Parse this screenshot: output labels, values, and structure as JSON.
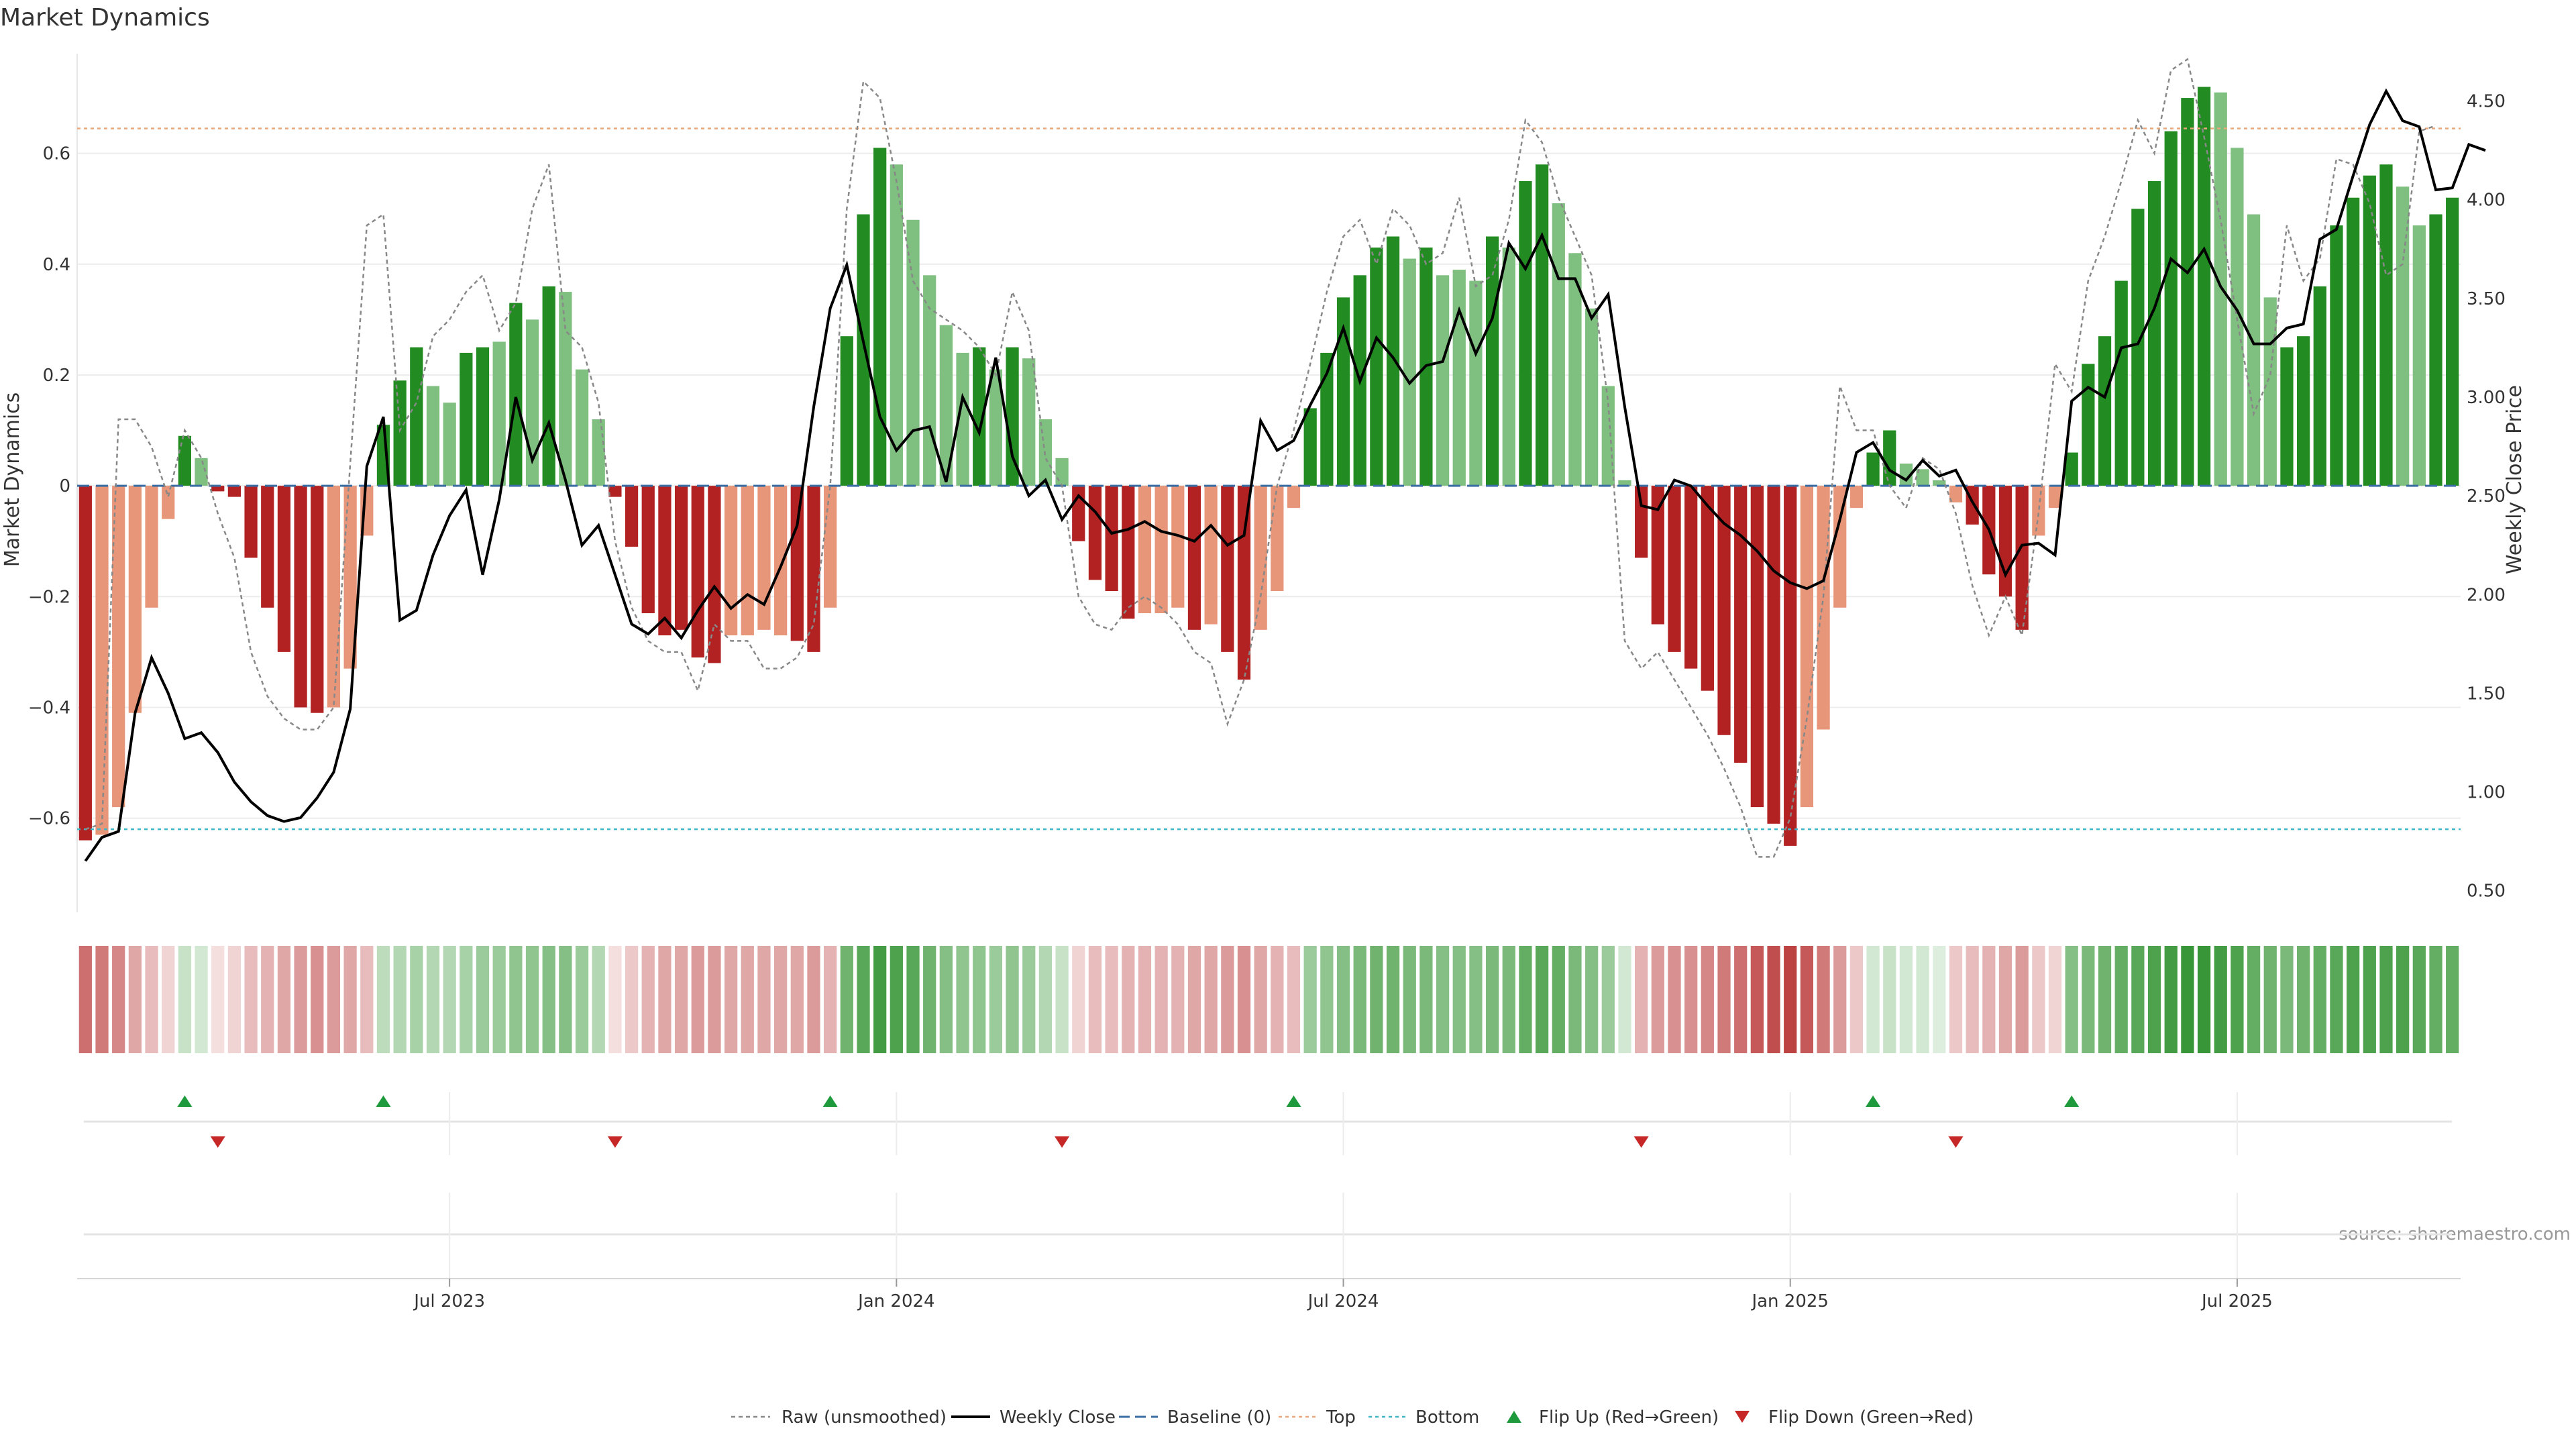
{
  "chart_data": {
    "type": "bar",
    "title": "Market Dynamics",
    "ylabel_left": "Market Dynamics",
    "ylabel_right": "Weekly Close Price",
    "source": "source: sharemaestro.com",
    "x_ticks": [
      "Jul 2023",
      "Jan 2024",
      "Jul 2024",
      "Jan 2025",
      "Jul 2025"
    ],
    "x_tick_index": [
      22,
      49,
      76,
      103,
      130
    ],
    "y_left": {
      "min": -0.77,
      "max": 0.78,
      "ticks": [
        -0.6,
        -0.4,
        -0.2,
        0,
        0.2,
        0.4,
        0.6
      ],
      "tick_labels": [
        "−0.6",
        "−0.4",
        "−0.2",
        "0",
        "0.2",
        "0.4",
        "0.6"
      ]
    },
    "y_right": {
      "min": 0.39,
      "max": 4.74,
      "ticks": [
        0.5,
        1.0,
        1.5,
        2.0,
        2.5,
        3.0,
        3.5,
        4.0,
        4.5
      ],
      "tick_labels": [
        "0.50",
        "1.00",
        "1.50",
        "2.00",
        "2.50",
        "3.00",
        "3.50",
        "4.00",
        "4.50"
      ]
    },
    "top_level": 0.645,
    "bottom_level": -0.62,
    "baseline": 0,
    "values": [
      -0.64,
      -0.63,
      -0.58,
      -0.41,
      -0.22,
      -0.06,
      0.09,
      0.05,
      -0.01,
      -0.02,
      -0.13,
      -0.22,
      -0.3,
      -0.4,
      -0.41,
      -0.4,
      -0.33,
      -0.09,
      0.11,
      0.19,
      0.25,
      0.18,
      0.15,
      0.24,
      0.25,
      0.26,
      0.33,
      0.3,
      0.36,
      0.35,
      0.21,
      0.12,
      -0.02,
      -0.11,
      -0.23,
      -0.27,
      -0.26,
      -0.31,
      -0.32,
      -0.27,
      -0.27,
      -0.26,
      -0.27,
      -0.28,
      -0.3,
      -0.22,
      0.27,
      0.49,
      0.61,
      0.58,
      0.48,
      0.38,
      0.29,
      0.24,
      0.25,
      0.21,
      0.25,
      0.23,
      0.12,
      0.05,
      -0.1,
      -0.17,
      -0.19,
      -0.24,
      -0.23,
      -0.23,
      -0.22,
      -0.26,
      -0.25,
      -0.3,
      -0.35,
      -0.26,
      -0.19,
      -0.04,
      0.14,
      0.24,
      0.34,
      0.38,
      0.43,
      0.45,
      0.41,
      0.43,
      0.38,
      0.39,
      0.37,
      0.45,
      0.43,
      0.55,
      0.58,
      0.51,
      0.42,
      0.32,
      0.18,
      0.01,
      -0.13,
      -0.25,
      -0.3,
      -0.33,
      -0.37,
      -0.45,
      -0.5,
      -0.58,
      -0.61,
      -0.65,
      -0.58,
      -0.44,
      -0.22,
      -0.04,
      0.06,
      0.1,
      0.04,
      0.03,
      0.01,
      -0.03,
      -0.07,
      -0.16,
      -0.2,
      -0.26,
      -0.09,
      -0.04,
      0.06,
      0.22,
      0.27,
      0.37,
      0.5,
      0.55,
      0.64,
      0.7,
      0.72,
      0.71,
      0.61,
      0.49,
      0.34,
      0.25,
      0.27,
      0.36,
      0.47,
      0.52,
      0.56,
      0.58,
      0.54,
      0.47,
      0.49,
      0.52
    ],
    "bar_colors": [
      "#b22222",
      "#e8967a",
      "#e8967a",
      "#e8967a",
      "#e8967a",
      "#e8967a",
      "#228b22",
      "#7fbf7f",
      "#b22222",
      "#b22222",
      "#b22222",
      "#b22222",
      "#b22222",
      "#b22222",
      "#b22222",
      "#e8967a",
      "#e8967a",
      "#e8967a",
      "#228b22",
      "#228b22",
      "#228b22",
      "#7fbf7f",
      "#7fbf7f",
      "#228b22",
      "#228b22",
      "#7fbf7f",
      "#228b22",
      "#7fbf7f",
      "#228b22",
      "#7fbf7f",
      "#7fbf7f",
      "#7fbf7f",
      "#b22222",
      "#b22222",
      "#b22222",
      "#b22222",
      "#b22222",
      "#b22222",
      "#b22222",
      "#e8967a",
      "#e8967a",
      "#e8967a",
      "#e8967a",
      "#b22222",
      "#b22222",
      "#e8967a",
      "#228b22",
      "#228b22",
      "#228b22",
      "#7fbf7f",
      "#7fbf7f",
      "#7fbf7f",
      "#7fbf7f",
      "#7fbf7f",
      "#228b22",
      "#7fbf7f",
      "#228b22",
      "#7fbf7f",
      "#7fbf7f",
      "#7fbf7f",
      "#b22222",
      "#b22222",
      "#b22222",
      "#b22222",
      "#e8967a",
      "#e8967a",
      "#e8967a",
      "#b22222",
      "#e8967a",
      "#b22222",
      "#b22222",
      "#e8967a",
      "#e8967a",
      "#e8967a",
      "#228b22",
      "#228b22",
      "#228b22",
      "#228b22",
      "#228b22",
      "#228b22",
      "#7fbf7f",
      "#228b22",
      "#7fbf7f",
      "#7fbf7f",
      "#7fbf7f",
      "#228b22",
      "#7fbf7f",
      "#228b22",
      "#228b22",
      "#7fbf7f",
      "#7fbf7f",
      "#7fbf7f",
      "#7fbf7f",
      "#7fbf7f",
      "#b22222",
      "#b22222",
      "#b22222",
      "#b22222",
      "#b22222",
      "#b22222",
      "#b22222",
      "#b22222",
      "#b22222",
      "#b22222",
      "#e8967a",
      "#e8967a",
      "#e8967a",
      "#e8967a",
      "#228b22",
      "#228b22",
      "#7fbf7f",
      "#7fbf7f",
      "#7fbf7f",
      "#e8967a",
      "#b22222",
      "#b22222",
      "#b22222",
      "#b22222",
      "#e8967a",
      "#e8967a",
      "#228b22",
      "#228b22",
      "#228b22",
      "#228b22",
      "#228b22",
      "#228b22",
      "#228b22",
      "#228b22",
      "#228b22",
      "#7fbf7f",
      "#7fbf7f",
      "#7fbf7f",
      "#7fbf7f",
      "#228b22",
      "#228b22",
      "#228b22",
      "#228b22",
      "#228b22",
      "#228b22",
      "#228b22",
      "#7fbf7f",
      "#7fbf7f",
      "#228b22",
      "#228b22"
    ],
    "raw_unsmoothed": [
      -0.62,
      -0.61,
      0.12,
      0.12,
      0.07,
      -0.02,
      0.1,
      0.05,
      -0.05,
      -0.13,
      -0.3,
      -0.38,
      -0.42,
      -0.44,
      -0.44,
      -0.4,
      0.04,
      0.47,
      0.49,
      0.1,
      0.15,
      0.27,
      0.3,
      0.35,
      0.38,
      0.28,
      0.33,
      0.5,
      0.58,
      0.28,
      0.25,
      0.15,
      -0.1,
      -0.22,
      -0.28,
      -0.3,
      -0.3,
      -0.37,
      -0.25,
      -0.28,
      -0.28,
      -0.33,
      -0.33,
      -0.31,
      -0.25,
      0.0,
      0.5,
      0.73,
      0.7,
      0.55,
      0.37,
      0.32,
      0.3,
      0.28,
      0.25,
      0.2,
      0.35,
      0.28,
      0.05,
      0.0,
      -0.2,
      -0.25,
      -0.26,
      -0.22,
      -0.2,
      -0.22,
      -0.25,
      -0.3,
      -0.32,
      -0.43,
      -0.35,
      -0.2,
      0.0,
      0.1,
      0.22,
      0.35,
      0.45,
      0.48,
      0.4,
      0.5,
      0.47,
      0.4,
      0.42,
      0.52,
      0.36,
      0.38,
      0.48,
      0.66,
      0.62,
      0.52,
      0.45,
      0.38,
      0.15,
      -0.28,
      -0.33,
      -0.3,
      -0.35,
      -0.4,
      -0.45,
      -0.51,
      -0.58,
      -0.67,
      -0.67,
      -0.6,
      -0.42,
      -0.2,
      0.18,
      0.1,
      0.1,
      0.0,
      -0.04,
      0.05,
      0.03,
      -0.05,
      -0.18,
      -0.27,
      -0.2,
      -0.27,
      -0.05,
      0.22,
      0.17,
      0.37,
      0.45,
      0.55,
      0.66,
      0.6,
      0.75,
      0.77,
      0.63,
      0.48,
      0.3,
      0.13,
      0.2,
      0.47,
      0.37,
      0.41,
      0.59,
      0.58,
      0.51,
      0.38,
      0.4,
      0.64,
      0.65
    ],
    "weekly_close": [
      0.65,
      0.77,
      0.8,
      1.4,
      1.68,
      1.5,
      1.27,
      1.3,
      1.2,
      1.05,
      0.95,
      0.88,
      0.85,
      0.87,
      0.97,
      1.1,
      1.42,
      2.65,
      2.9,
      1.87,
      1.92,
      2.2,
      2.4,
      2.53,
      2.1,
      2.48,
      3.0,
      2.68,
      2.87,
      2.58,
      2.25,
      2.35,
      2.1,
      1.85,
      1.8,
      1.88,
      1.78,
      1.92,
      2.04,
      1.93,
      2.0,
      1.95,
      2.14,
      2.35,
      2.95,
      3.45,
      3.67,
      3.28,
      2.9,
      2.73,
      2.83,
      2.85,
      2.57,
      3.0,
      2.82,
      3.2,
      2.7,
      2.5,
      2.58,
      2.38,
      2.5,
      2.42,
      2.31,
      2.33,
      2.37,
      2.32,
      2.3,
      2.27,
      2.35,
      2.25,
      2.3,
      2.88,
      2.73,
      2.78,
      2.96,
      3.12,
      3.35,
      3.08,
      3.3,
      3.2,
      3.07,
      3.16,
      3.18,
      3.44,
      3.22,
      3.4,
      3.78,
      3.65,
      3.82,
      3.6,
      3.6,
      3.4,
      3.52,
      2.95,
      2.45,
      2.43,
      2.58,
      2.55,
      2.45,
      2.36,
      2.3,
      2.22,
      2.12,
      2.06,
      2.03,
      2.07,
      2.38,
      2.72,
      2.77,
      2.63,
      2.58,
      2.68,
      2.6,
      2.63,
      2.47,
      2.33,
      2.1,
      2.25,
      2.26,
      2.2,
      2.98,
      3.05,
      3.0,
      3.25,
      3.27,
      3.45,
      3.7,
      3.63,
      3.75,
      3.56,
      3.44,
      3.27,
      3.27,
      3.35,
      3.37,
      3.8,
      3.85,
      4.12,
      4.38,
      4.55,
      4.4,
      4.37,
      4.05,
      4.06,
      4.28,
      4.25
    ],
    "heat_strip_alpha": [
      0.65,
      0.6,
      0.55,
      0.4,
      0.3,
      0.2,
      0.25,
      0.2,
      0.15,
      0.2,
      0.3,
      0.35,
      0.4,
      0.45,
      0.5,
      0.45,
      0.4,
      0.3,
      0.3,
      0.35,
      0.4,
      0.35,
      0.35,
      0.4,
      0.45,
      0.45,
      0.5,
      0.5,
      0.55,
      0.55,
      0.45,
      0.35,
      0.15,
      0.25,
      0.35,
      0.4,
      0.4,
      0.45,
      0.45,
      0.4,
      0.4,
      0.4,
      0.4,
      0.4,
      0.45,
      0.35,
      0.65,
      0.75,
      0.85,
      0.8,
      0.75,
      0.65,
      0.55,
      0.5,
      0.5,
      0.45,
      0.5,
      0.45,
      0.35,
      0.25,
      0.2,
      0.3,
      0.3,
      0.35,
      0.35,
      0.35,
      0.35,
      0.4,
      0.4,
      0.45,
      0.5,
      0.4,
      0.35,
      0.3,
      0.45,
      0.5,
      0.55,
      0.6,
      0.65,
      0.65,
      0.6,
      0.6,
      0.55,
      0.55,
      0.55,
      0.6,
      0.6,
      0.7,
      0.75,
      0.7,
      0.6,
      0.55,
      0.45,
      0.2,
      0.35,
      0.45,
      0.5,
      0.5,
      0.55,
      0.6,
      0.65,
      0.75,
      0.8,
      0.85,
      0.75,
      0.6,
      0.45,
      0.25,
      0.2,
      0.25,
      0.2,
      0.2,
      0.15,
      0.25,
      0.3,
      0.35,
      0.4,
      0.45,
      0.25,
      0.2,
      0.55,
      0.6,
      0.65,
      0.7,
      0.75,
      0.8,
      0.85,
      0.9,
      0.9,
      0.85,
      0.8,
      0.7,
      0.65,
      0.6,
      0.65,
      0.7,
      0.75,
      0.8,
      0.8,
      0.8,
      0.8,
      0.75,
      0.7,
      0.7
    ],
    "flip_up_index": [
      6,
      18,
      45,
      73,
      108,
      120
    ],
    "flip_down_index": [
      8,
      32,
      59,
      94,
      113
    ],
    "legend": [
      "Raw (unsmoothed)",
      "Weekly Close",
      "Baseline (0)",
      "Top",
      "Bottom",
      "Flip Up (Red→Green)",
      "Flip Down (Green→Red)"
    ],
    "colors": {
      "red_strong": "#b22222",
      "red_light": "#e8967a",
      "green_strong": "#228b22",
      "green_light": "#7fbf7f",
      "strip_red": "#b22222",
      "strip_green": "#228b22",
      "top_line": "#e8a87c",
      "bottom_line": "#3fb6c8",
      "baseline": "#3a6ea5",
      "flip_up": "#1e9a3c",
      "flip_down": "#c62828",
      "close_line": "#000000",
      "raw_line": "#888888"
    }
  }
}
